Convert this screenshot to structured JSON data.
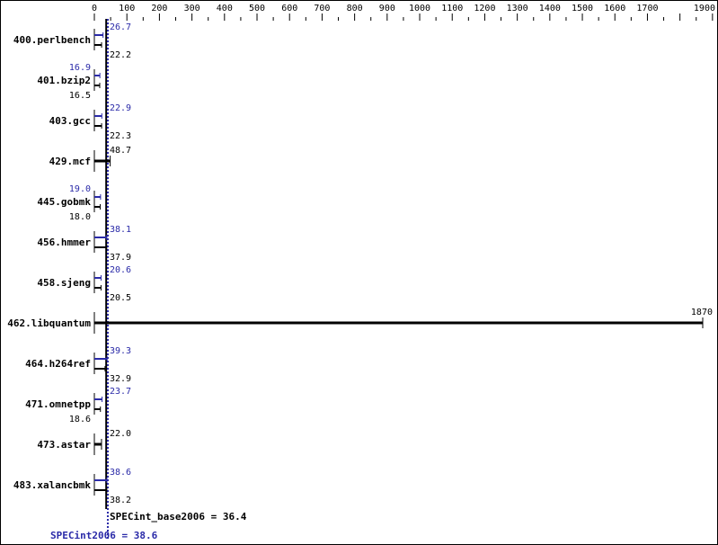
{
  "chart_data": {
    "type": "bar",
    "orientation": "horizontal",
    "xlim": [
      0,
      1900
    ],
    "x_ticks": [
      0,
      100,
      200,
      300,
      400,
      500,
      600,
      700,
      800,
      900,
      1000,
      1100,
      1200,
      1300,
      1400,
      1500,
      1600,
      1700,
      1900
    ],
    "categories": [
      "400.perlbench",
      "401.bzip2",
      "403.gcc",
      "429.mcf",
      "445.gobmk",
      "456.hmmer",
      "458.sjeng",
      "462.libquantum",
      "464.h264ref",
      "471.omnetpp",
      "473.astar",
      "483.xalancbmk"
    ],
    "series": [
      {
        "name": "SPECint_base2006",
        "color": "#000000",
        "values": [
          22.2,
          16.5,
          22.3,
          48.7,
          18.0,
          37.9,
          20.5,
          1870,
          32.9,
          18.6,
          22.0,
          38.2
        ]
      },
      {
        "name": "SPECint2006",
        "color": "#2a2aa8",
        "values": [
          26.7,
          16.9,
          22.9,
          null,
          19.0,
          38.1,
          20.6,
          null,
          39.3,
          23.7,
          null,
          38.6
        ]
      }
    ],
    "summary": {
      "base_label": "SPECint_base2006 = 36.4",
      "base_value": 36.4,
      "peak_label": "SPECint2006 = 38.6",
      "peak_value": 38.6
    }
  }
}
